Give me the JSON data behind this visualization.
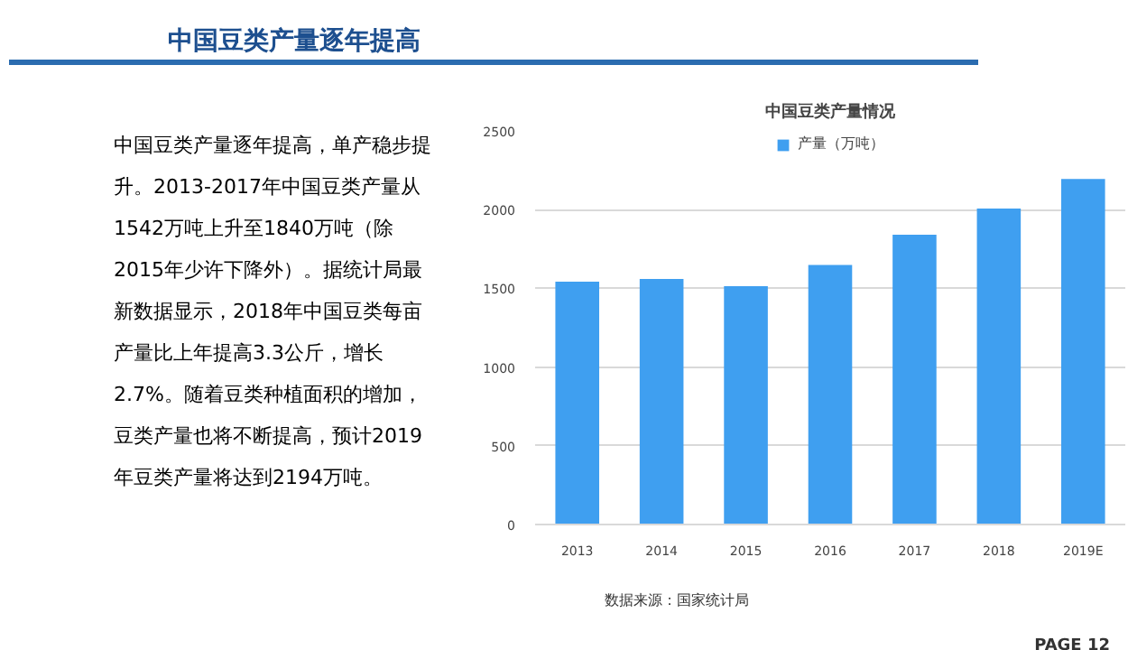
{
  "chart_data": {
    "type": "bar",
    "title": "中国豆类产量情况",
    "categories": [
      "2013",
      "2014",
      "2015",
      "2016",
      "2017",
      "2018",
      "2019E"
    ],
    "series": [
      {
        "name": "产量（万吨）",
        "color": "#3f9ff0",
        "values": [
          1542,
          1559,
          1514,
          1648,
          1840,
          2007,
          2194
        ]
      }
    ],
    "ylim": [
      0,
      2500
    ],
    "yticks": [
      0,
      500,
      1000,
      1500,
      2000,
      2500
    ],
    "grid": "y",
    "legend": "top",
    "annotations": [
      "中国豆类产量逐年提高",
      "中国豆类产量逐年提高，单产稳步提升。2013-2017年中国豆类产量从1542万吨上升至1840万吨（除2015年少许下降外）。据统计局最新数据显示，2018年中国豆类每亩产量比上年提高3.3公斤，增长2.7%。随着豆类种植面积的增加，豆类产量也将不断提高，预计2019年豆类产量将达到2194万吨。",
      "数据来源：国家统计局",
      "PAGE 12"
    ]
  }
}
